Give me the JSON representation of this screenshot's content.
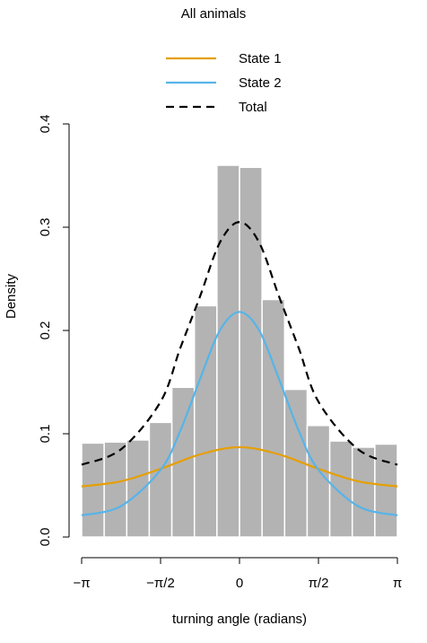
{
  "chart_data": {
    "type": "bar",
    "title": "All animals",
    "xlabel": "turning angle (radians)",
    "ylabel": "Density",
    "xlim": [
      -3.14159,
      3.14159
    ],
    "ylim": [
      0,
      0.4
    ],
    "yticks": [
      {
        "value": 0.0,
        "label": "0.0"
      },
      {
        "value": 0.1,
        "label": "0.1"
      },
      {
        "value": 0.2,
        "label": "0.2"
      },
      {
        "value": 0.3,
        "label": "0.3"
      },
      {
        "value": 0.4,
        "label": "0.4"
      }
    ],
    "xticks": [
      {
        "value": -3.14159,
        "label": "−π"
      },
      {
        "value": -1.5708,
        "label": "−π/2"
      },
      {
        "value": 0,
        "label": "0"
      },
      {
        "value": 1.5708,
        "label": "π/2"
      },
      {
        "value": 3.14159,
        "label": "π"
      }
    ],
    "histogram": {
      "bin_edges": [
        -3.14159,
        -2.69279,
        -2.24399,
        -1.79519,
        -1.3464,
        -0.8976,
        -0.4488,
        0,
        0.4488,
        0.8976,
        1.3464,
        1.79519,
        2.24399,
        2.69279,
        3.14159
      ],
      "densities": [
        0.091,
        0.092,
        0.094,
        0.111,
        0.145,
        0.224,
        0.36,
        0.358,
        0.23,
        0.143,
        0.108,
        0.093,
        0.087,
        0.09
      ],
      "color": "#b3b3b3"
    },
    "series": [
      {
        "name": "State 1",
        "color": "#e69f00",
        "dash": "solid",
        "x": [
          -3.14159,
          -2.35619,
          -1.5708,
          -0.7854,
          0,
          0.7854,
          1.5708,
          2.35619,
          3.14159
        ],
        "values": [
          0.049,
          0.054,
          0.066,
          0.08,
          0.087,
          0.08,
          0.066,
          0.054,
          0.049
        ]
      },
      {
        "name": "State 2",
        "color": "#56b4e9",
        "dash": "solid",
        "x": [
          -3.14159,
          -2.35619,
          -1.5708,
          -1.1781,
          -0.7854,
          -0.3927,
          0,
          0.3927,
          0.7854,
          1.1781,
          1.5708,
          2.35619,
          3.14159
        ],
        "values": [
          0.021,
          0.03,
          0.065,
          0.103,
          0.153,
          0.2,
          0.218,
          0.2,
          0.153,
          0.103,
          0.065,
          0.03,
          0.021
        ]
      },
      {
        "name": "Total",
        "color": "#000000",
        "dash": "dashed",
        "x": [
          -3.14159,
          -2.35619,
          -1.5708,
          -1.1781,
          -0.7854,
          -0.3927,
          0,
          0.3927,
          0.7854,
          1.1781,
          1.5708,
          2.35619,
          3.14159
        ],
        "values": [
          0.07,
          0.085,
          0.131,
          0.183,
          0.233,
          0.285,
          0.305,
          0.285,
          0.233,
          0.183,
          0.131,
          0.085,
          0.07
        ]
      }
    ],
    "legend": {
      "placement": "top-center",
      "entries": [
        "State 1",
        "State 2",
        "Total"
      ]
    },
    "grid": false
  }
}
